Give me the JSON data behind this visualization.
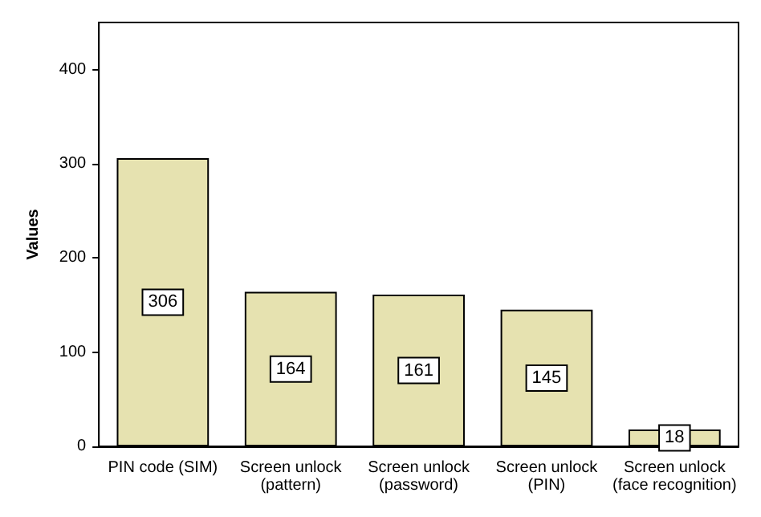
{
  "chart_data": {
    "type": "bar",
    "ylabel": "Values",
    "categories": [
      "PIN code (SIM)",
      "Screen unlock\n(pattern)",
      "Screen unlock\n(password)",
      "Screen unlock\n(PIN)",
      "Screen unlock\n(face recognition)"
    ],
    "values": [
      306,
      164,
      161,
      145,
      18
    ],
    "color": "#e6e2b0",
    "ylim": [
      0,
      450
    ],
    "yticks": [
      0,
      100,
      200,
      300,
      400
    ],
    "grid": false,
    "data_labels": true
  }
}
